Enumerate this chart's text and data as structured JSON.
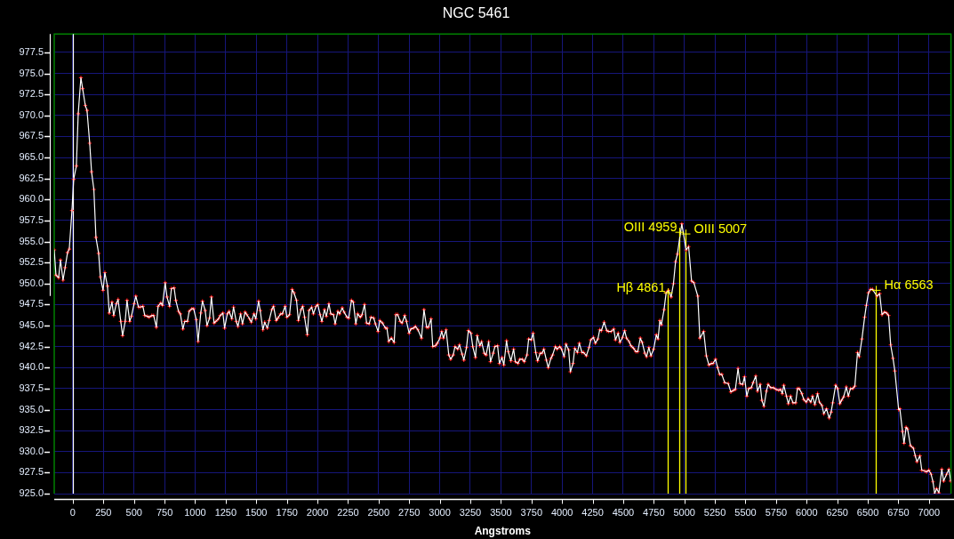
{
  "chart_data": {
    "type": "line",
    "title": "NGC 5461",
    "xlabel": "Angstroms",
    "x": [
      -152,
      -138,
      -116,
      -101,
      -80,
      -63,
      -43,
      -29,
      -7,
      7,
      29,
      44,
      66,
      80,
      102,
      116,
      138,
      153,
      172,
      189,
      211,
      225,
      247,
      262,
      283,
      298,
      320,
      334,
      356,
      370,
      392,
      407,
      428,
      443,
      465,
      479,
      501,
      515,
      537,
      552,
      573,
      588,
      610,
      624,
      646,
      661,
      683,
      697,
      719,
      733,
      755,
      770,
      791,
      806,
      828,
      842,
      864,
      879,
      900,
      915,
      937,
      951,
      973,
      988,
      1009,
      1024,
      1046,
      1060,
      1082,
      1097,
      1118,
      1133,
      1155,
      1169,
      1191,
      1205,
      1227,
      1241,
      1263,
      1278,
      1300,
      1314,
      1336,
      1350,
      1372,
      1387,
      1408,
      1423,
      1445,
      1459,
      1481,
      1496,
      1519,
      1532,
      1554,
      1569,
      1590,
      1605,
      1627,
      1641,
      1663,
      1677,
      1699,
      1714,
      1736,
      1750,
      1772,
      1793,
      1808,
      1829,
      1844,
      1866,
      1880,
      1895,
      1917,
      1931,
      1953,
      1967,
      1989,
      2003,
      2022,
      2036,
      2058,
      2073,
      2094,
      2109,
      2131,
      2145,
      2167,
      2181,
      2203,
      2218,
      2242,
      2256,
      2278,
      2293,
      2314,
      2329,
      2351,
      2365,
      2385,
      2402,
      2423,
      2438,
      2460,
      2474,
      2496,
      2510,
      2532,
      2556,
      2568,
      2583,
      2605,
      2627,
      2641,
      2656,
      2677,
      2692,
      2714,
      2728,
      2750,
      2764,
      2786,
      2801,
      2822,
      2851,
      2871,
      2893,
      2907,
      2929,
      2943,
      2965,
      2980,
      3001,
      3016,
      3030,
      3052,
      3074,
      3089,
      3110,
      3125,
      3147,
      3161,
      3183,
      3197,
      3219,
      3234,
      3255,
      3270,
      3292,
      3306,
      3328,
      3342,
      3364,
      3379,
      3400,
      3415,
      3437,
      3451,
      3473,
      3488,
      3509,
      3524,
      3546,
      3560,
      3582,
      3604,
      3618,
      3640,
      3655,
      3676,
      3691,
      3713,
      3727,
      3749,
      3763,
      3785,
      3800,
      3821,
      3836,
      3851,
      3872,
      3887,
      3909,
      3923,
      3945,
      3959,
      3981,
      3996,
      4017,
      4032,
      4054,
      4068,
      4090,
      4104,
      4126,
      4141,
      4163,
      4177,
      4199,
      4221,
      4235,
      4257,
      4272,
      4293,
      4308,
      4322,
      4344,
      4366,
      4380,
      4402,
      4423,
      4437,
      4459,
      4473,
      4495,
      4512,
      4527,
      4548,
      4563,
      4585,
      4604,
      4619,
      4640,
      4655,
      4677,
      4691,
      4710,
      4727,
      4749,
      4771,
      4785,
      4800,
      4812,
      4834,
      4851,
      4870,
      4892,
      4911,
      4928,
      4943,
      4979,
      5015,
      5035,
      5059,
      5078,
      5110,
      5127,
      5158,
      5180,
      5201,
      5221,
      5235,
      5255,
      5272,
      5289,
      5306,
      5330,
      5359,
      5380,
      5402,
      5417,
      5439,
      5455,
      5477,
      5492,
      5511,
      5526,
      5547,
      5562,
      5584,
      5598,
      5620,
      5634,
      5651,
      5671,
      5685,
      5707,
      5729,
      5751,
      5772,
      5787,
      5801,
      5813,
      5835,
      5850,
      5869,
      5888,
      5910,
      5925,
      5939,
      5961,
      5976,
      5997,
      6012,
      6034,
      6048,
      6067,
      6089,
      6104,
      6125,
      6140,
      6162,
      6184,
      6200,
      6213,
      6237,
      6254,
      6271,
      6285,
      6302,
      6324,
      6341,
      6358,
      6377,
      6394,
      6416,
      6430,
      6452,
      6474,
      6488,
      6505,
      6522,
      6539,
      6575,
      6597,
      6616,
      6636,
      6653,
      6670,
      6687,
      6706,
      6721,
      6752,
      6762,
      6784,
      6796,
      6813,
      6825,
      6849,
      6873,
      6888,
      6902,
      6926,
      6941,
      6965,
      6980,
      6999,
      7018,
      7033,
      7047,
      7062,
      7081,
      7105,
      7120,
      7144,
      7163,
      7178
    ],
    "values": [
      954.0,
      951.0,
      950.7,
      952.8,
      950.4,
      951.9,
      953.7,
      954.1,
      958.7,
      962.4,
      964.0,
      970.2,
      974.5,
      973.2,
      971.2,
      970.6,
      966.7,
      963.3,
      961.2,
      955.5,
      953.6,
      950.8,
      949.2,
      951.3,
      949.7,
      946.5,
      947.8,
      946.2,
      947.6,
      948.1,
      945.5,
      943.8,
      945.5,
      948.0,
      945.5,
      946.1,
      947.6,
      948.5,
      947.2,
      947.2,
      947.3,
      946.2,
      946.1,
      946.0,
      946.2,
      946.2,
      944.8,
      947.3,
      947.7,
      947.4,
      950.1,
      948.4,
      947.3,
      949.4,
      949.5,
      948.0,
      946.7,
      946.4,
      944.6,
      945.5,
      945.5,
      946.7,
      947.0,
      947.0,
      945.7,
      943.1,
      946.5,
      947.9,
      946.8,
      945.0,
      945.9,
      948.4,
      945.3,
      945.5,
      945.8,
      946.2,
      946.5,
      944.7,
      946.4,
      946.7,
      945.8,
      947.2,
      945.5,
      944.9,
      946.4,
      945.2,
      946.6,
      946.3,
      945.8,
      945.4,
      946.4,
      945.8,
      947.9,
      946.8,
      944.5,
      945.4,
      944.7,
      945.6,
      946.9,
      947.3,
      945.6,
      945.9,
      946.4,
      946.4,
      947.3,
      946.0,
      946.3,
      949.3,
      948.9,
      948.0,
      945.6,
      946.9,
      947.3,
      946.0,
      943.9,
      946.8,
      947.2,
      946.4,
      947.3,
      947.5,
      946.3,
      945.5,
      946.9,
      946.1,
      947.6,
      946.4,
      946.3,
      945.2,
      946.7,
      946.4,
      947.1,
      946.6,
      946.0,
      945.9,
      948.0,
      947.8,
      945.2,
      946.4,
      946.0,
      946.3,
      947.5,
      945.3,
      945.2,
      946.0,
      945.9,
      945.2,
      944.3,
      945.6,
      945.3,
      944.7,
      944.7,
      943.1,
      943.5,
      943.0,
      946.3,
      946.3,
      945.5,
      945.3,
      946.2,
      945.5,
      944.1,
      944.6,
      944.7,
      944.9,
      944.5,
      943.5,
      946.9,
      944.8,
      944.8,
      945.8,
      942.5,
      942.6,
      942.9,
      943.5,
      944.3,
      943.5,
      944.5,
      941.5,
      941.0,
      941.5,
      942.5,
      942.2,
      942.7,
      941.6,
      940.9,
      942.4,
      944.4,
      944.1,
      942.5,
      941.2,
      943.8,
      942.6,
      943.1,
      941.7,
      941.5,
      943.1,
      940.7,
      941.7,
      942.5,
      942.6,
      940.5,
      941.2,
      940.3,
      943.2,
      941.9,
      940.8,
      942.2,
      940.7,
      940.5,
      941.0,
      941.0,
      940.7,
      941.5,
      943.4,
      943.3,
      944.1,
      941.8,
      940.8,
      941.7,
      941.7,
      942.2,
      940.9,
      940.0,
      941.1,
      941.5,
      942.5,
      942.2,
      942.5,
      942.2,
      941.3,
      942.8,
      942.1,
      939.5,
      940.5,
      942.3,
      941.8,
      942.9,
      941.8,
      941.8,
      941.4,
      942.4,
      943.3,
      943.6,
      942.9,
      943.4,
      944.5,
      944.4,
      945.4,
      944.4,
      944.3,
      944.3,
      944.6,
      943.3,
      944.1,
      943.0,
      943.6,
      944.4,
      943.5,
      943.1,
      942.6,
      942.3,
      941.9,
      941.9,
      943.5,
      943.0,
      941.7,
      941.3,
      942.4,
      941.4,
      942.2,
      943.9,
      943.4,
      945.6,
      945.1,
      946.9,
      948.9,
      949.2,
      948.4,
      950.0,
      952.6,
      953.5,
      957.1,
      954.0,
      954.4,
      950.3,
      950.1,
      948.5,
      943.5,
      944.3,
      941.4,
      940.3,
      940.5,
      940.5,
      941.0,
      940.0,
      939.2,
      939.2,
      938.2,
      938.1,
      937.1,
      937.3,
      937.4,
      939.9,
      938.1,
      938.0,
      938.9,
      936.6,
      937.5,
      937.6,
      938.2,
      939.0,
      937.2,
      938.0,
      936.1,
      935.4,
      937.2,
      938.0,
      937.6,
      937.6,
      937.4,
      937.3,
      937.4,
      936.9,
      937.9,
      936.6,
      935.7,
      936.6,
      935.8,
      935.8,
      937.5,
      937.5,
      936.9,
      936.2,
      935.9,
      936.3,
      935.9,
      936.6,
      935.6,
      936.9,
      935.9,
      935.5,
      934.5,
      935.1,
      934.0,
      934.7,
      935.8,
      937.9,
      937.5,
      935.7,
      936.1,
      936.5,
      937.7,
      936.6,
      937.5,
      937.5,
      937.8,
      941.8,
      941.3,
      943.4,
      946.0,
      947.4,
      948.9,
      949.3,
      949.3,
      948.5,
      948.8,
      946.3,
      946.6,
      946.5,
      946.2,
      942.7,
      941.1,
      939.6,
      935.0,
      935.1,
      932.4,
      931.0,
      932.9,
      932.7,
      930.7,
      930.4,
      929.5,
      928.8,
      929.5,
      927.8,
      927.7,
      927.6,
      927.8,
      927.3,
      926.4,
      925.0,
      925.6,
      925.1,
      927.9,
      926.5,
      927.3,
      927.9,
      926.5
    ],
    "color": "#ffffff",
    "marker": "cross",
    "grid": true,
    "xlim": [
      -152,
      7180
    ],
    "xticks": [
      0,
      250,
      500,
      750,
      1000,
      1250,
      1500,
      1750,
      2000,
      2250,
      2500,
      2750,
      3000,
      3250,
      3500,
      3750,
      4000,
      4250,
      4500,
      4750,
      5000,
      5250,
      5500,
      5750,
      6000,
      6250,
      6500,
      6750,
      7000
    ],
    "ylim": [
      925,
      979.7
    ],
    "yticks": [
      {
        "value": 925,
        "label": "925.0"
      },
      927.5,
      {
        "value": 930,
        "label": "930.0"
      },
      932.5,
      {
        "value": 935,
        "label": "935.0"
      },
      937.5,
      {
        "value": 940,
        "label": "940.0"
      },
      942.5,
      {
        "value": 945,
        "label": "945.0"
      },
      947.5,
      {
        "value": 950,
        "label": "950.0"
      },
      952.5,
      {
        "value": 955,
        "label": "955.0"
      },
      957.5,
      {
        "value": 960,
        "label": "960.0"
      },
      962.5,
      {
        "value": 965,
        "label": "965.0"
      },
      967.5,
      {
        "value": 970,
        "label": "970.0"
      },
      972.5,
      {
        "value": 975,
        "label": "975.0"
      },
      977.5
    ],
    "ref_lines": [
      {
        "axis": "x",
        "value": 0,
        "color": "#ffffff"
      }
    ],
    "annotations": [
      {
        "text": "Hβ 4861",
        "x": 4861,
        "y": 948.9
      },
      {
        "text": "OIII 4959",
        "x": 4959,
        "y": 956.1
      },
      {
        "text": "OIII 5007",
        "x": 5007,
        "y": 955.9
      },
      {
        "text": "Hα 6563",
        "x": 6563,
        "y": 949.2
      }
    ]
  }
}
